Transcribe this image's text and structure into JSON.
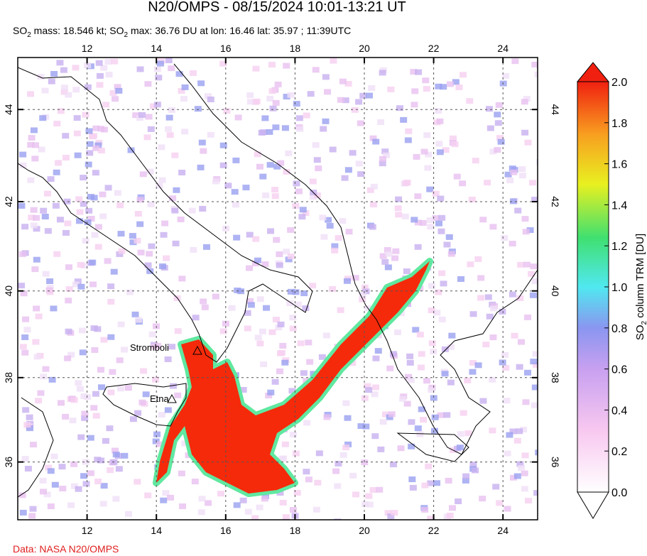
{
  "header": {
    "title": "N20/OMPS - 08/15/2024 10:01-13:21 UT",
    "subtitle": [
      "SO",
      "2",
      " mass: 18.546 kt; SO",
      "2",
      " max: 36.76 DU at lon: 16.46 lat: 35.97 ; 11:39UTC"
    ]
  },
  "map": {
    "lonlim": [
      10,
      25
    ],
    "latlim": [
      34.6,
      45.1
    ],
    "lonticks": [
      12,
      14,
      16,
      18,
      20,
      22,
      24
    ],
    "latticks": [
      36,
      38,
      40,
      42,
      44
    ],
    "volcanoes": [
      {
        "name": "Stromboli"
      },
      {
        "name": "Etna"
      }
    ]
  },
  "colorbar": {
    "range": [
      0,
      2
    ],
    "ticks": [
      {
        "value": 0,
        "label": "0.0"
      },
      {
        "value": 0.2,
        "label": "0.2"
      },
      {
        "value": 0.4,
        "label": "0.4"
      },
      {
        "value": 0.6,
        "label": "0.6"
      },
      {
        "value": 0.8,
        "label": "0.8"
      },
      {
        "value": 1.0,
        "label": "1.0"
      },
      {
        "value": 1.2,
        "label": "1.2"
      },
      {
        "value": 1.4,
        "label": "1.4"
      },
      {
        "value": 1.6,
        "label": "1.6"
      },
      {
        "value": 1.8,
        "label": "1.8"
      },
      {
        "value": 2.0,
        "label": "2.0"
      }
    ],
    "label": [
      "SO",
      "2",
      " column TRM [DU]"
    ]
  },
  "footer": {
    "credit": "Data: NASA N20/OMPS"
  }
}
